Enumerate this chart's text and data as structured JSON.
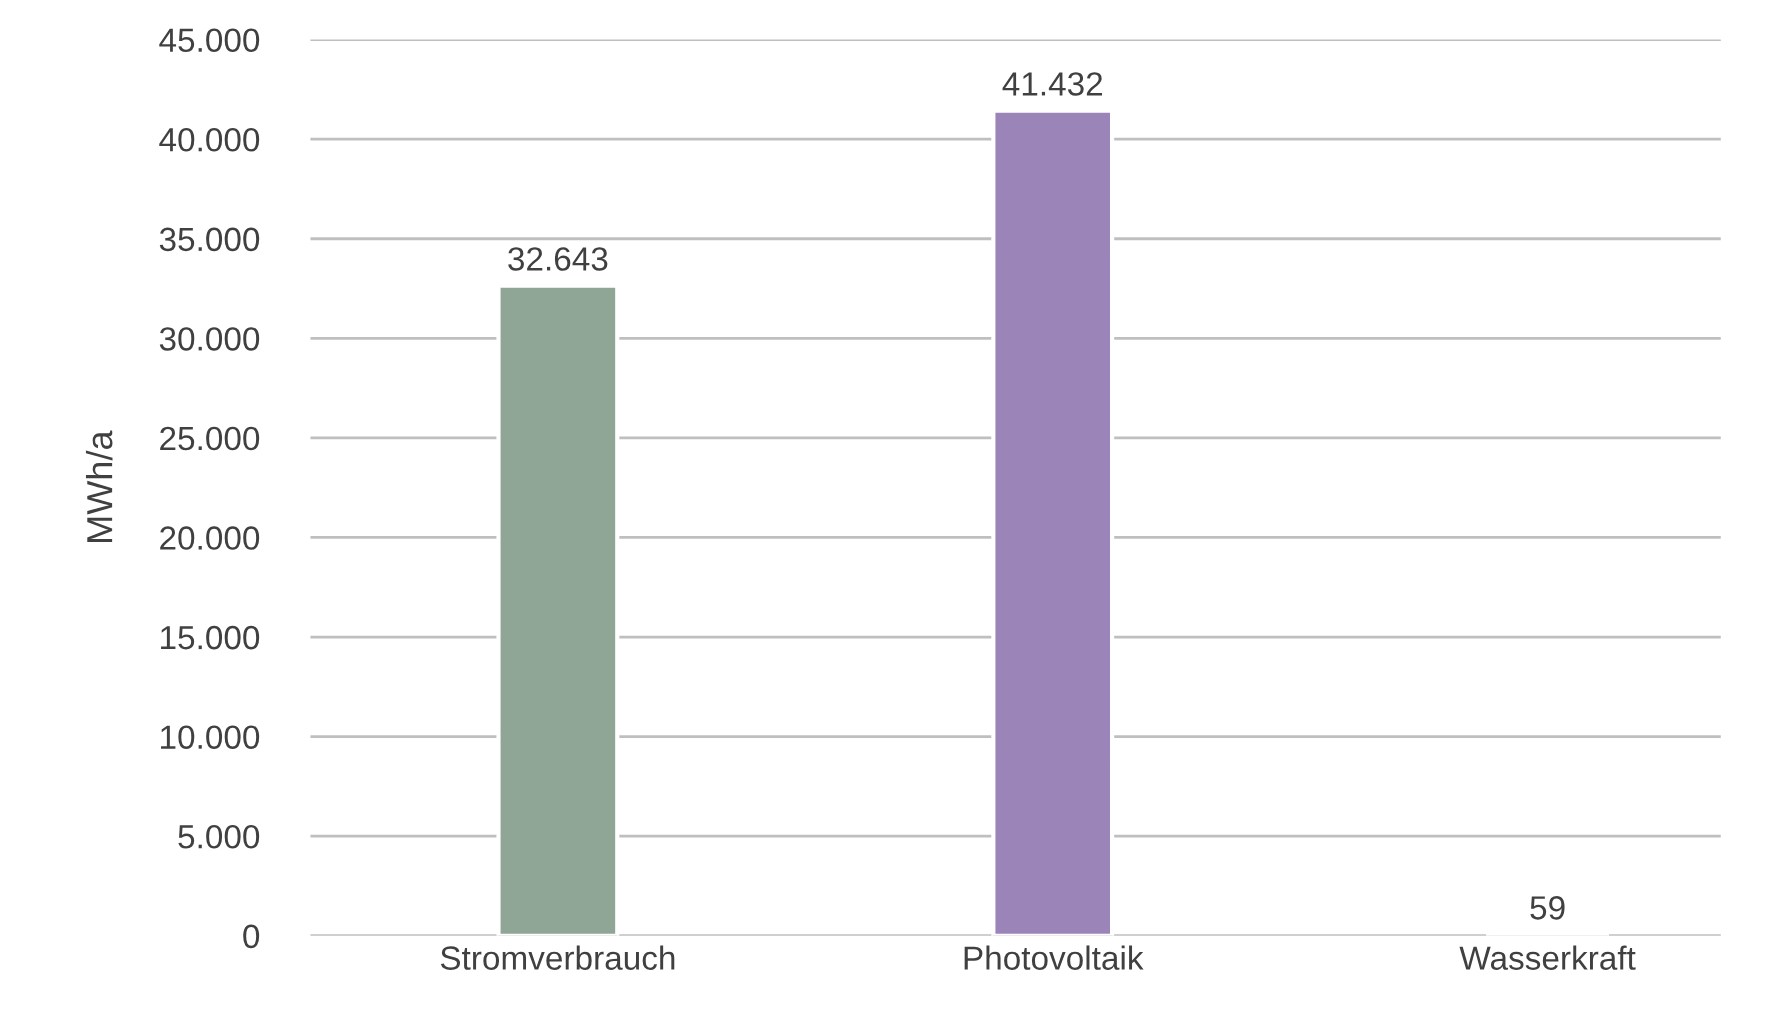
{
  "chart_data": {
    "type": "bar",
    "ylabel": "MWh/a",
    "categories": [
      "Stromverbrauch",
      "Photovoltaik",
      "Wasserkraft"
    ],
    "values": [
      32643,
      41432,
      59
    ],
    "colors": [
      "#8fa595",
      "#9b84b8",
      "#9dc3e6"
    ],
    "value_labels": [
      "32.643",
      "41.432",
      "59"
    ],
    "ylim": [
      0,
      45000
    ],
    "yticks": [
      0,
      {
        "value": 5000,
        "label": "5.000"
      },
      {
        "value": 10000,
        "label": "10.000"
      },
      {
        "value": 15000,
        "label": "15.000"
      },
      {
        "value": 20000,
        "label": "20.000"
      },
      {
        "value": 25000,
        "label": "25.000"
      },
      {
        "value": 30000,
        "label": "30.000"
      },
      {
        "value": 35000,
        "label": "35.000"
      },
      {
        "value": 40000,
        "label": "40.000"
      },
      {
        "value": 45000,
        "label": "45.000"
      }
    ],
    "grid": "y"
  }
}
